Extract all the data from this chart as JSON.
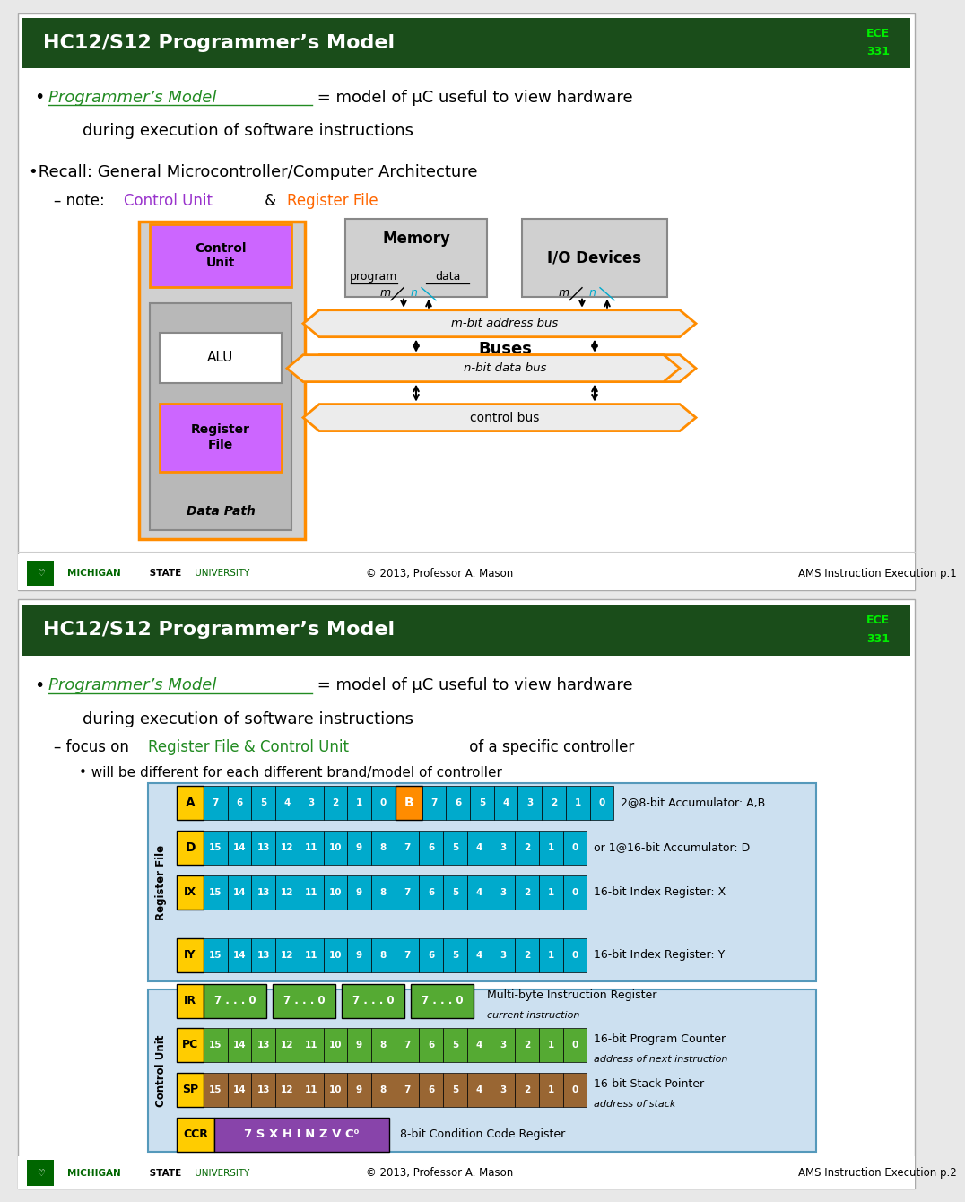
{
  "title": "HC12/S12 Programmer's Model",
  "bg_color": "#ffffff",
  "header_bg": "#1a4d1a",
  "header_text_color": "#ffffff",
  "ece_color": "#00ee00",
  "green_text": "#228B22",
  "cu_color": "#9933cc",
  "rf_color": "#ff6600",
  "cpu_fill": "#d0d0d0",
  "cpu_border": "#ff8c00",
  "datapath_fill": "#b8b8b8",
  "control_unit_fill": "#cc66ff",
  "alu_fill": "#ffffff",
  "memory_fill": "#d0d0d0",
  "io_fill": "#d0d0d0",
  "bus_fill": "#ececec",
  "bus_border": "#ff8c00",
  "teal": "#00aacc",
  "orange_b": "#ff8c00",
  "yellow_label": "#ffcc00",
  "green_reg": "#55aa33",
  "brown_reg": "#996633",
  "purple_ccr": "#8844aa",
  "reg_bg": "#cce0f0",
  "reg_border": "#5599bb",
  "msu_green": "#006600",
  "footer_text": "© 2013, Professor A. Mason",
  "footer_right1": "AMS Instruction Execution p.1",
  "footer_right2": "AMS Instruction Execution p.2",
  "cells_8": [
    "7",
    "6",
    "5",
    "4",
    "3",
    "2",
    "1",
    "0"
  ],
  "cells_16": [
    "15",
    "14",
    "13",
    "12",
    "11",
    "10",
    "9",
    "8",
    "7",
    "6",
    "5",
    "4",
    "3",
    "2",
    "1",
    "0"
  ]
}
